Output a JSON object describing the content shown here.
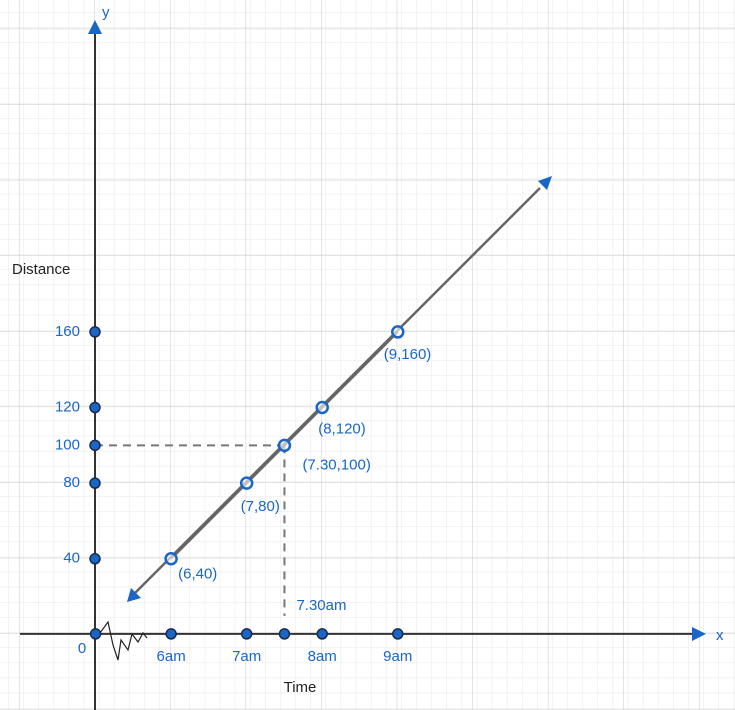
{
  "chart_data": {
    "type": "line",
    "x_label": "Time",
    "y_label": "Distance",
    "x_axis_name": "x",
    "y_axis_name": "y",
    "series": [
      {
        "color": "#1a66c7",
        "x": [
          6,
          7,
          7.5,
          8,
          9
        ],
        "values": [
          40,
          80,
          100,
          120,
          160
        ],
        "value_labels": [
          "(6,40)",
          "(7,80)",
          "(7.30,100)",
          "(8,120)",
          "(9,160)"
        ]
      }
    ],
    "annotations": [
      {
        "text": "7.30am",
        "x": 7.5
      }
    ],
    "xlim": [
      4,
      13
    ],
    "ylim": [
      -40,
      325
    ],
    "xticks": [
      {
        "value": 5,
        "label": "0"
      },
      {
        "value": 6,
        "label": "6am"
      },
      {
        "value": 7,
        "label": "7am"
      },
      {
        "value": 8,
        "label": "8am"
      },
      {
        "value": 9,
        "label": "9am"
      }
    ],
    "yticks": [
      40,
      80,
      100,
      120,
      160
    ],
    "grid": true
  }
}
